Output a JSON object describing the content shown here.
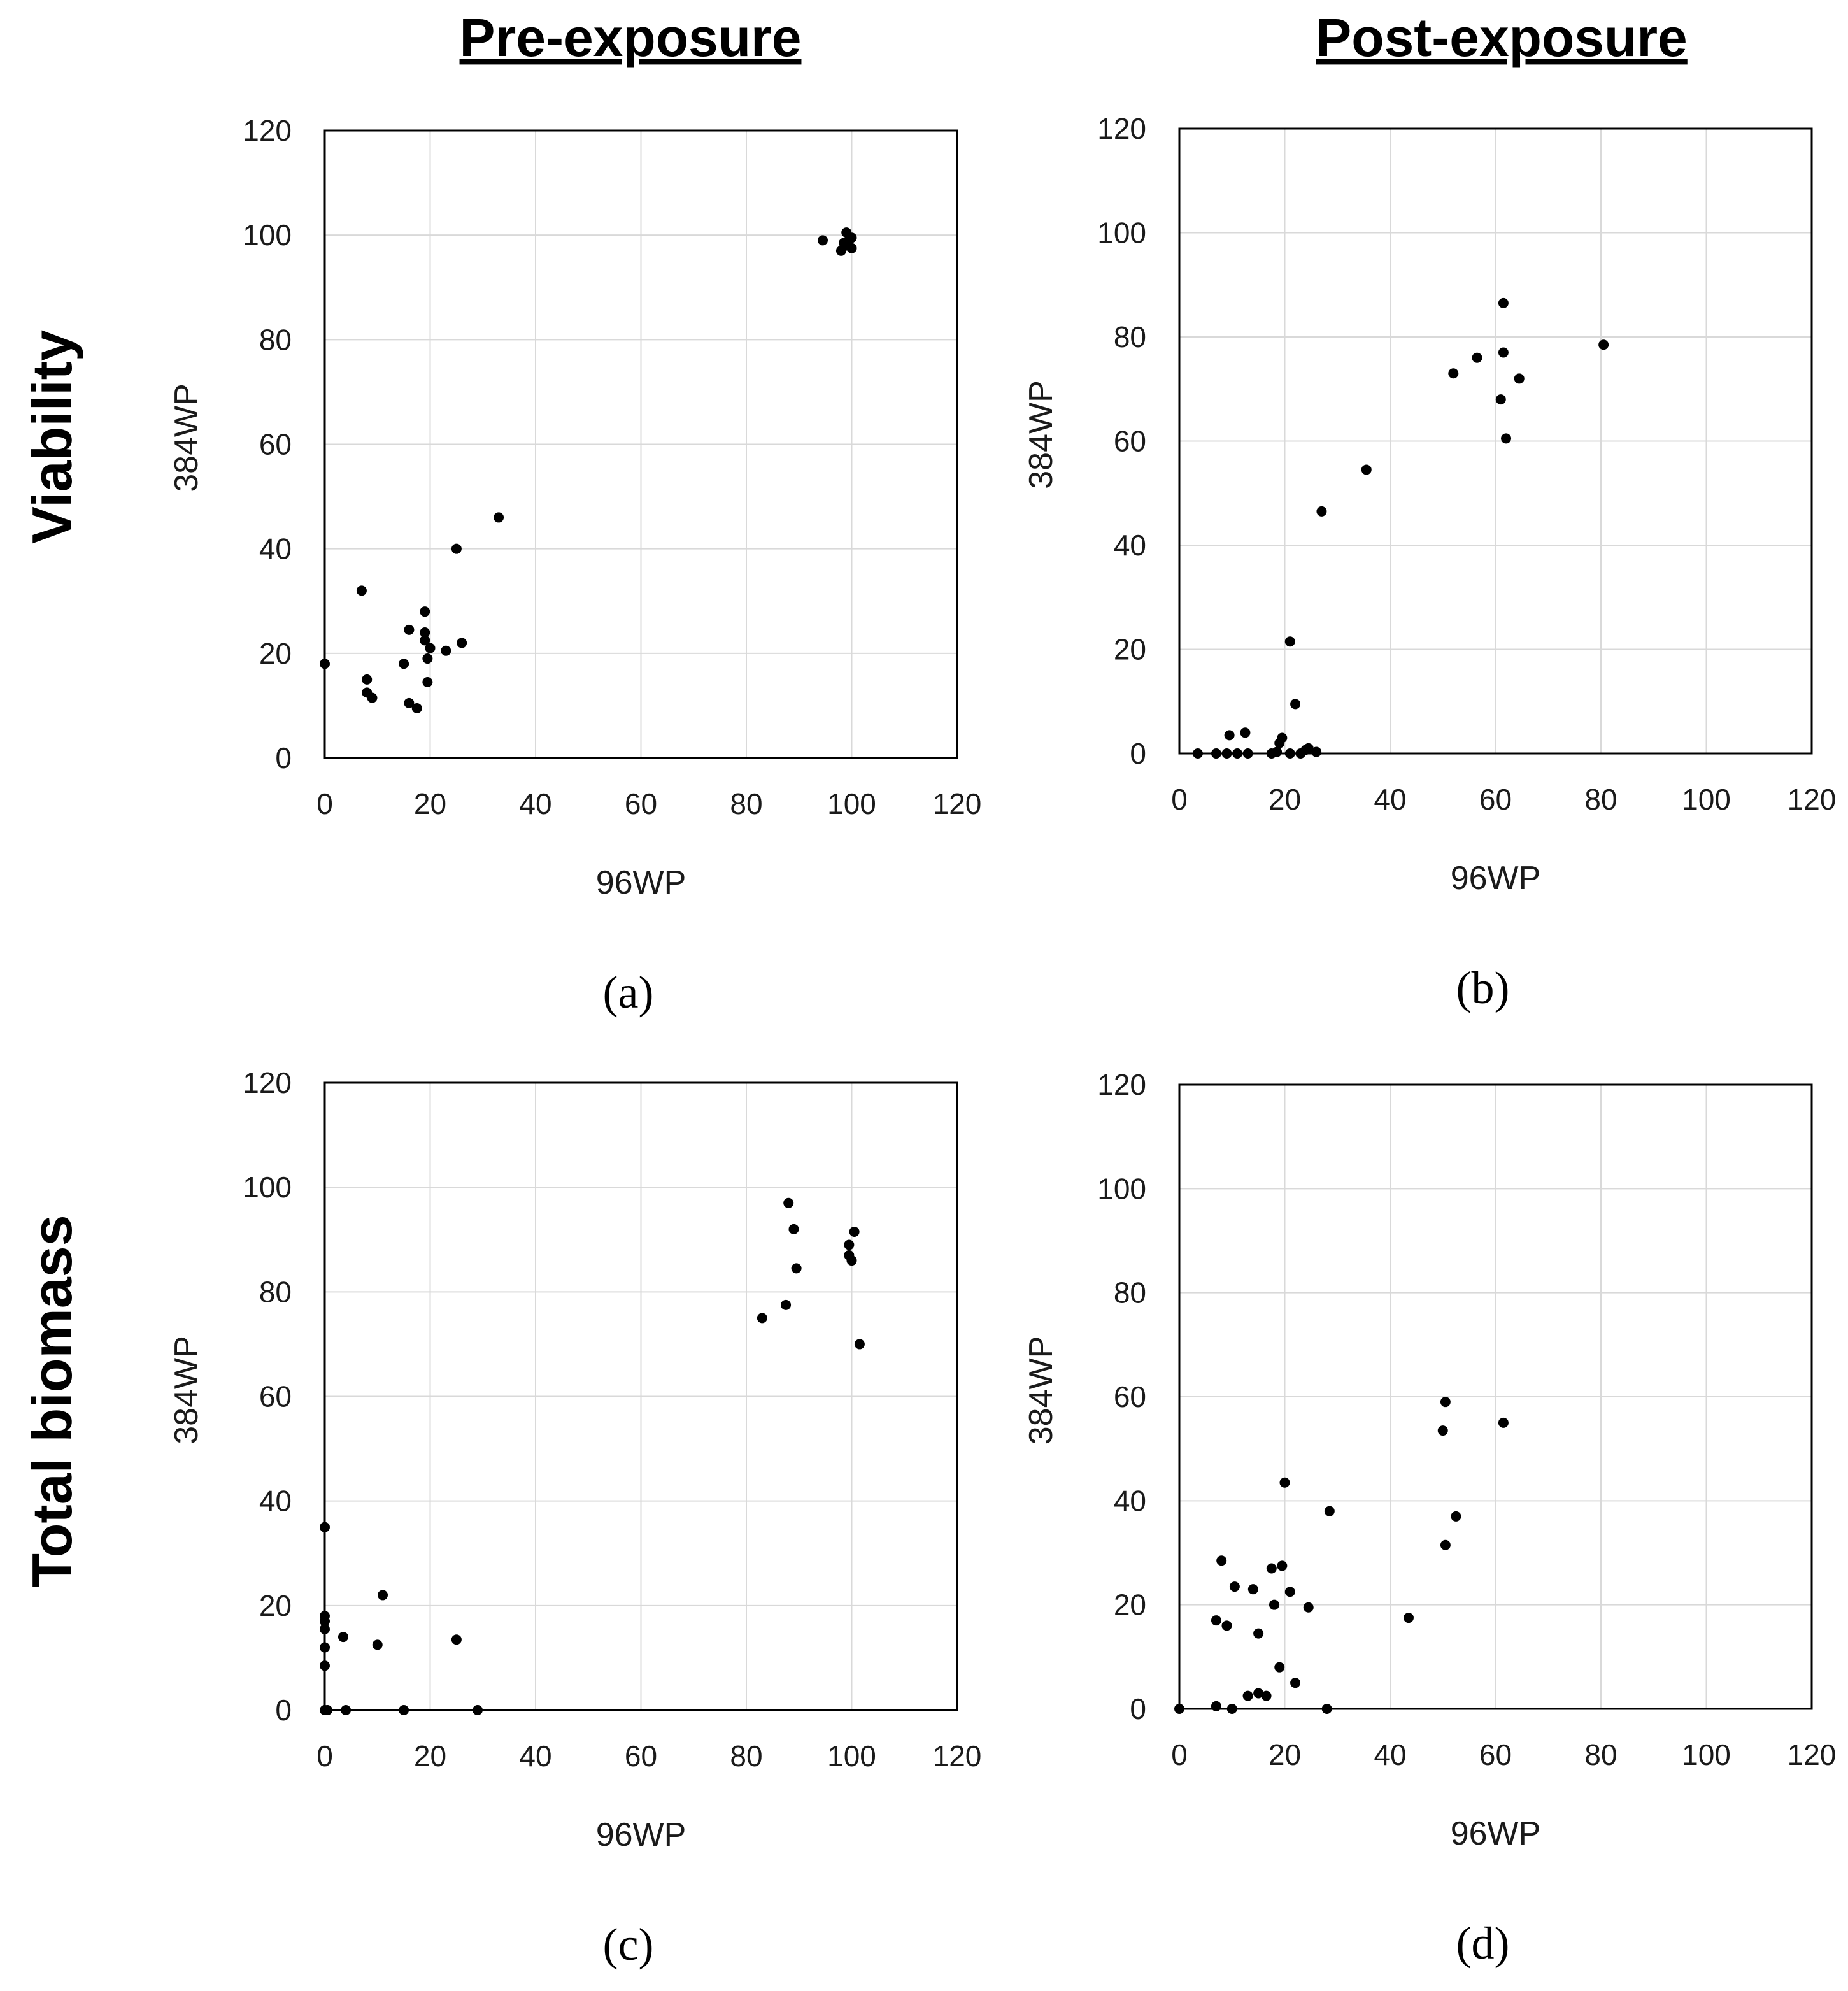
{
  "column_headers": [
    "Pre-exposure",
    "Post-exposure"
  ],
  "row_headers": [
    "Viability",
    "Total biomass"
  ],
  "chart_data": [
    {
      "type": "scatter",
      "panel_label": "(a)",
      "xlabel": "96WP",
      "ylabel": "384WP",
      "xlim": [
        0,
        120
      ],
      "ylim": [
        0,
        120
      ],
      "xticks": [
        "0",
        "20",
        "40",
        "60",
        "80",
        "100",
        "120"
      ],
      "yticks": [
        "0",
        "20",
        "40",
        "60",
        "80",
        "100",
        "120"
      ],
      "points": [
        [
          0,
          18
        ],
        [
          7,
          32
        ],
        [
          8,
          12.5
        ],
        [
          8,
          15
        ],
        [
          9,
          11.5
        ],
        [
          16,
          10.5
        ],
        [
          17.5,
          9.5
        ],
        [
          16,
          24.5
        ],
        [
          15,
          18
        ],
        [
          19,
          28
        ],
        [
          19,
          24
        ],
        [
          19,
          22.5
        ],
        [
          19.5,
          19
        ],
        [
          20,
          21
        ],
        [
          19.5,
          14.5
        ],
        [
          23,
          20.5
        ],
        [
          25,
          40
        ],
        [
          26,
          22
        ],
        [
          33,
          46
        ],
        [
          94.5,
          99
        ],
        [
          98,
          97
        ],
        [
          99,
          98
        ],
        [
          99,
          100.5
        ],
        [
          99.5,
          99
        ],
        [
          100,
          97.5
        ],
        [
          100,
          99.5
        ],
        [
          98.5,
          98.5
        ]
      ]
    },
    {
      "type": "scatter",
      "panel_label": "(b)",
      "xlabel": "96WP",
      "ylabel": "384WP",
      "xlim": [
        0,
        120
      ],
      "ylim": [
        0,
        120
      ],
      "xticks": [
        "0",
        "20",
        "40",
        "60",
        "80",
        "100",
        "120"
      ],
      "yticks": [
        "0",
        "20",
        "40",
        "60",
        "80",
        "100",
        "120"
      ],
      "points": [
        [
          3.5,
          0
        ],
        [
          7,
          0
        ],
        [
          9,
          0
        ],
        [
          9.5,
          3.5
        ],
        [
          11,
          0
        ],
        [
          12.5,
          4
        ],
        [
          13,
          0
        ],
        [
          17.5,
          0
        ],
        [
          18.5,
          0.3
        ],
        [
          19,
          2
        ],
        [
          19.5,
          3
        ],
        [
          21,
          0
        ],
        [
          21,
          21.5
        ],
        [
          22,
          9.5
        ],
        [
          23,
          0
        ],
        [
          24,
          0.7
        ],
        [
          24.5,
          1
        ],
        [
          26,
          0.3
        ],
        [
          27,
          46.5
        ],
        [
          35.5,
          54.5
        ],
        [
          52,
          73
        ],
        [
          56.5,
          76
        ],
        [
          61,
          68
        ],
        [
          61.5,
          86.5
        ],
        [
          61.5,
          77
        ],
        [
          62,
          60.5
        ],
        [
          64.5,
          72
        ],
        [
          80.5,
          78.5
        ]
      ]
    },
    {
      "type": "scatter",
      "panel_label": "(c)",
      "xlabel": "96WP",
      "ylabel": "384WP",
      "xlim": [
        0,
        120
      ],
      "ylim": [
        0,
        120
      ],
      "xticks": [
        "0",
        "20",
        "40",
        "60",
        "80",
        "100",
        "120"
      ],
      "yticks": [
        "0",
        "20",
        "40",
        "60",
        "80",
        "100",
        "120"
      ],
      "points": [
        [
          0,
          35
        ],
        [
          0,
          18
        ],
        [
          0,
          17
        ],
        [
          0,
          15.5
        ],
        [
          0,
          12
        ],
        [
          0,
          8.5
        ],
        [
          0,
          0
        ],
        [
          0.5,
          0
        ],
        [
          3.5,
          14
        ],
        [
          4,
          0
        ],
        [
          10,
          12.5
        ],
        [
          11,
          22
        ],
        [
          15,
          0
        ],
        [
          25,
          13.5
        ],
        [
          29,
          0
        ],
        [
          83,
          75
        ],
        [
          87.5,
          77.5
        ],
        [
          88,
          97
        ],
        [
          89,
          92
        ],
        [
          89.5,
          84.5
        ],
        [
          99.5,
          87
        ],
        [
          99.5,
          89
        ],
        [
          100,
          86
        ],
        [
          100.5,
          91.5
        ],
        [
          101.5,
          70
        ]
      ]
    },
    {
      "type": "scatter",
      "panel_label": "(d)",
      "xlabel": "96WP",
      "ylabel": "384WP",
      "xlim": [
        0,
        120
      ],
      "ylim": [
        0,
        120
      ],
      "xticks": [
        "0",
        "20",
        "40",
        "60",
        "80",
        "100",
        "120"
      ],
      "yticks": [
        "0",
        "20",
        "40",
        "60",
        "80",
        "100",
        "120"
      ],
      "points": [
        [
          0,
          0
        ],
        [
          7,
          17
        ],
        [
          7,
          0.5
        ],
        [
          8,
          28.5
        ],
        [
          9,
          16
        ],
        [
          10,
          0
        ],
        [
          10.5,
          23.5
        ],
        [
          13,
          2.5
        ],
        [
          14,
          23
        ],
        [
          15,
          14.5
        ],
        [
          15,
          3
        ],
        [
          16.5,
          2.5
        ],
        [
          17.5,
          27
        ],
        [
          18,
          20
        ],
        [
          19,
          8
        ],
        [
          19.5,
          27.5
        ],
        [
          20,
          43.5
        ],
        [
          21,
          22.5
        ],
        [
          22,
          5
        ],
        [
          24.5,
          19.5
        ],
        [
          28,
          0
        ],
        [
          28.5,
          38
        ],
        [
          43.5,
          17.5
        ],
        [
          50,
          53.5
        ],
        [
          50.5,
          59
        ],
        [
          50.5,
          31.5
        ],
        [
          52.5,
          37
        ],
        [
          61.5,
          55
        ]
      ]
    }
  ]
}
